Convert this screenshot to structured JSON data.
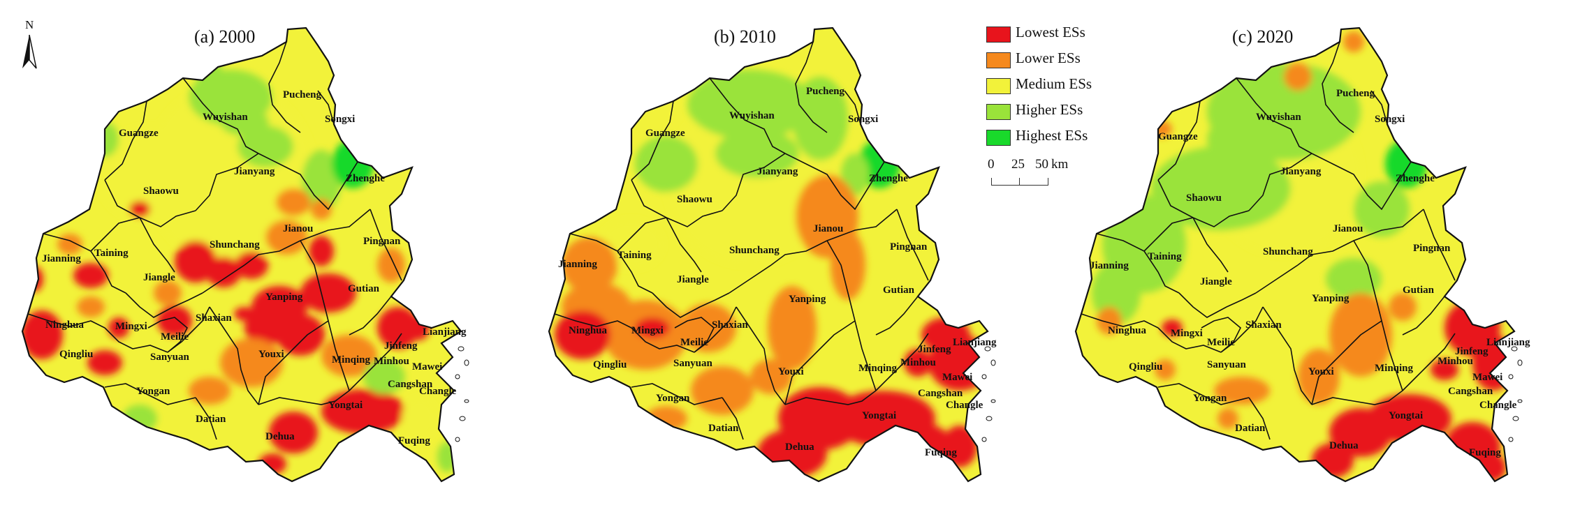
{
  "panels": [
    {
      "title": "(a) 2000"
    },
    {
      "title": "(b) 2010"
    },
    {
      "title": "(c) 2020"
    }
  ],
  "north_arrow": {
    "letter": "N"
  },
  "legend": [
    {
      "label": "Lowest ESs",
      "color": "#e8141c"
    },
    {
      "label": "Lower ESs",
      "color": "#f5891d"
    },
    {
      "label": "Medium ESs",
      "color": "#f2f23a"
    },
    {
      "label": "Higher ESs",
      "color": "#9ae33a"
    },
    {
      "label": "Highest ESs",
      "color": "#19d92b"
    }
  ],
  "scale_bar": {
    "ticks": [
      "0",
      "25",
      "50"
    ],
    "unit": "km"
  },
  "cities": [
    "Pucheng",
    "Wuyishan",
    "Songxi",
    "Guangze",
    "Jianyang",
    "Zhenghe",
    "Shaowu",
    "Jianou",
    "Pingnan",
    "Shunchang",
    "Jianning",
    "Taining",
    "Jiangle",
    "Gutian",
    "Yanping",
    "Ninghua",
    "Mingxi",
    "Shaxian",
    "Meilie",
    "Qingliu",
    "Sanyuan",
    "Lianjiang",
    "Jinfeng",
    "Youxi",
    "Minqing",
    "Minhou",
    "Mawei",
    "Cangshan",
    "Yongan",
    "Changle",
    "Yongtai",
    "Datian",
    "Dehua",
    "Fuqing"
  ]
}
